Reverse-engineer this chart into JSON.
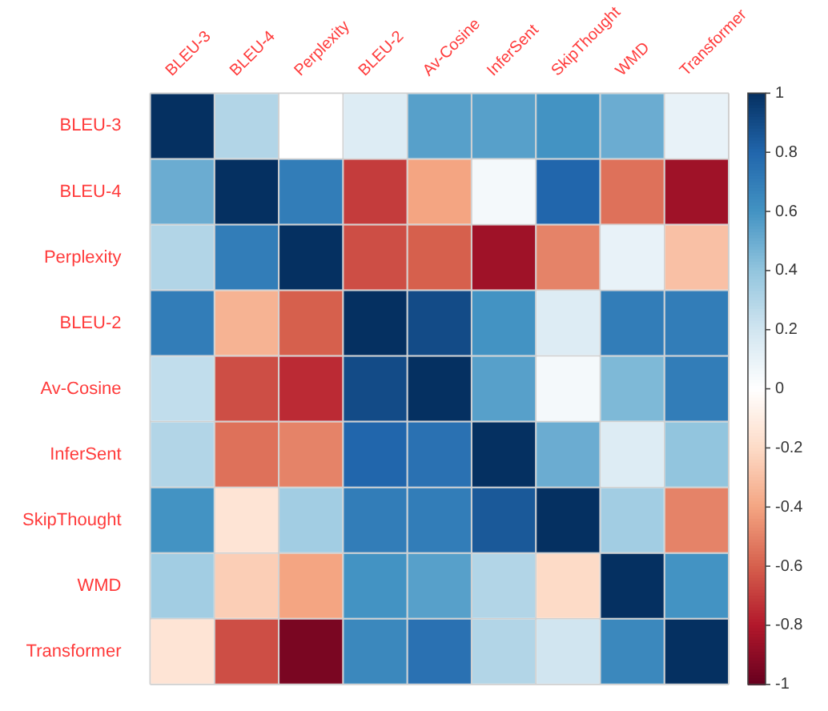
{
  "chart_data": {
    "type": "heatmap",
    "categories": [
      "BLEU-3",
      "BLEU-4",
      "Perplexity",
      "BLEU-2",
      "Av-Cosine",
      "InferSent",
      "SkipThought",
      "WMD",
      "Transformer"
    ],
    "y_categories": [
      "BLEU-3",
      "BLEU-4",
      "Perplexity",
      "BLEU-2",
      "Av-Cosine",
      "InferSent",
      "SkipThought",
      "WMD",
      "Transformer"
    ],
    "cells": [
      [
        1,
        0.3,
        0,
        0.15,
        0.55,
        0.55,
        0.6,
        0.5,
        0.1
      ],
      [
        0.5,
        1,
        0.7,
        -0.7,
        -0.4,
        0.05,
        0.8,
        -0.55,
        -0.85
      ],
      [
        0.3,
        0.7,
        1,
        -0.65,
        -0.6,
        -0.85,
        -0.5,
        0.1,
        -0.3
      ],
      [
        0.7,
        -0.35,
        -0.6,
        1,
        0.9,
        0.6,
        0.15,
        0.7,
        0.7
      ],
      [
        0.25,
        -0.65,
        -0.75,
        0.9,
        1,
        0.55,
        0.05,
        0.45,
        0.7
      ],
      [
        0.3,
        -0.55,
        -0.5,
        0.8,
        0.75,
        1,
        0.5,
        0.15,
        0.4
      ],
      [
        0.6,
        -0.15,
        0.35,
        0.7,
        0.7,
        0.85,
        1,
        0.35,
        -0.5
      ],
      [
        0.35,
        -0.25,
        -0.4,
        0.6,
        0.55,
        0.3,
        -0.2,
        1,
        0.6
      ],
      [
        -0.15,
        -0.65,
        -0.95,
        0.65,
        0.75,
        0.3,
        0.2,
        0.65,
        1
      ]
    ],
    "clim": [
      -1,
      1
    ],
    "cticks": [
      1,
      0.8,
      0.6,
      0.4,
      0.2,
      0,
      -0.2,
      -0.4,
      -0.6,
      -0.8,
      -1
    ]
  }
}
